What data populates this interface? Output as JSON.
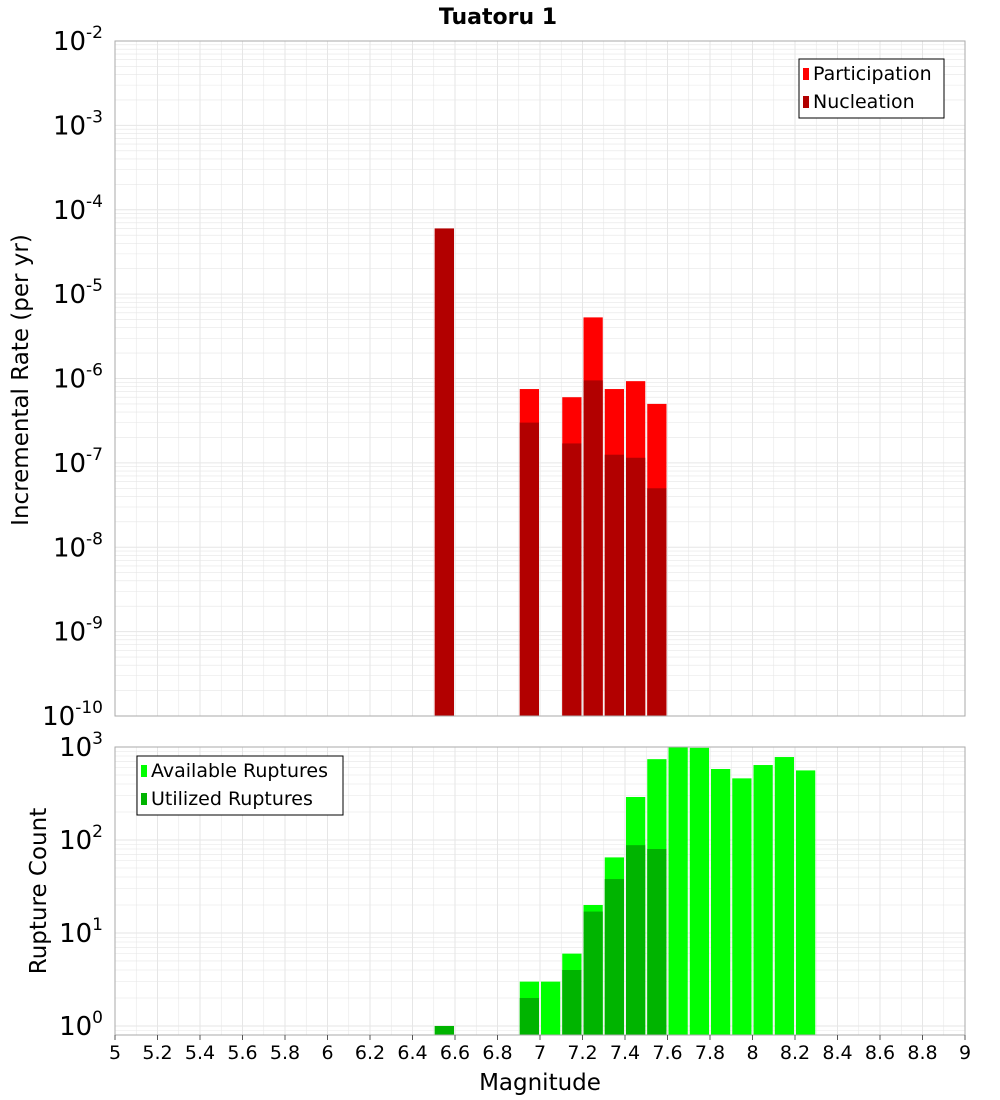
{
  "colors": {
    "participation": "#ff0000",
    "nucleation": "#b20000",
    "available": "#00ff00",
    "utilized": "#00b400",
    "grid": "#e6e6e6",
    "frame": "#aaaaaa"
  },
  "chart_data": [
    {
      "type": "bar",
      "title": "Tuatoru 1",
      "xlabel": "",
      "ylabel": "Incremental Rate (per yr)",
      "y_scale": "log",
      "xlim": [
        5,
        9
      ],
      "ylim": [
        1e-10,
        0.01
      ],
      "y_tick_exponents": [
        -2,
        -3,
        -4,
        -5,
        -6,
        -7,
        -8,
        -9,
        -10
      ],
      "y_tick_base": "10",
      "bin_width": 0.1,
      "grid": true,
      "legend_position": "top-right",
      "series": [
        {
          "name": "Participation",
          "color": "#ff0000",
          "points": [
            {
              "x": 6.55,
              "y": 6e-05
            },
            {
              "x": 6.95,
              "y": 7.5e-07
            },
            {
              "x": 7.15,
              "y": 6e-07
            },
            {
              "x": 7.25,
              "y": 5.3e-06
            },
            {
              "x": 7.35,
              "y": 7.5e-07
            },
            {
              "x": 7.45,
              "y": 9.3e-07
            },
            {
              "x": 7.55,
              "y": 5e-07
            }
          ]
        },
        {
          "name": "Nucleation",
          "color": "#b20000",
          "points": [
            {
              "x": 6.55,
              "y": 6e-05
            },
            {
              "x": 6.95,
              "y": 3e-07
            },
            {
              "x": 7.15,
              "y": 1.7e-07
            },
            {
              "x": 7.25,
              "y": 9.5e-07
            },
            {
              "x": 7.35,
              "y": 1.25e-07
            },
            {
              "x": 7.45,
              "y": 1.15e-07
            },
            {
              "x": 7.55,
              "y": 5e-08
            }
          ]
        }
      ]
    },
    {
      "type": "bar",
      "title": "",
      "xlabel": "Magnitude",
      "ylabel": "Rupture Count",
      "y_scale": "log",
      "xlim": [
        5,
        9
      ],
      "ylim": [
        0.8,
        1000
      ],
      "y_tick_exponents": [
        3,
        2,
        1,
        0
      ],
      "y_tick_base": "10",
      "x_ticks": [
        "5",
        "5.2",
        "5.4",
        "5.6",
        "5.8",
        "6",
        "6.2",
        "6.4",
        "6.6",
        "6.8",
        "7",
        "7.2",
        "7.4",
        "7.6",
        "7.8",
        "8",
        "8.2",
        "8.4",
        "8.6",
        "8.8",
        "9"
      ],
      "bin_width": 0.1,
      "grid": true,
      "legend_position": "top-left",
      "series": [
        {
          "name": "Available Ruptures",
          "color": "#00ff00",
          "points": [
            {
              "x": 6.55,
              "y": 1
            },
            {
              "x": 6.95,
              "y": 3
            },
            {
              "x": 7.05,
              "y": 3
            },
            {
              "x": 7.15,
              "y": 6
            },
            {
              "x": 7.25,
              "y": 20
            },
            {
              "x": 7.35,
              "y": 65
            },
            {
              "x": 7.45,
              "y": 290
            },
            {
              "x": 7.55,
              "y": 740
            },
            {
              "x": 7.65,
              "y": 1000
            },
            {
              "x": 7.75,
              "y": 980
            },
            {
              "x": 7.85,
              "y": 580
            },
            {
              "x": 7.95,
              "y": 460
            },
            {
              "x": 8.05,
              "y": 640
            },
            {
              "x": 8.15,
              "y": 780
            },
            {
              "x": 8.25,
              "y": 560
            }
          ]
        },
        {
          "name": "Utilized Ruptures",
          "color": "#00b400",
          "points": [
            {
              "x": 6.55,
              "y": 1
            },
            {
              "x": 6.95,
              "y": 2
            },
            {
              "x": 7.15,
              "y": 4
            },
            {
              "x": 7.25,
              "y": 17
            },
            {
              "x": 7.35,
              "y": 38
            },
            {
              "x": 7.45,
              "y": 88
            },
            {
              "x": 7.55,
              "y": 80
            }
          ]
        }
      ]
    }
  ]
}
